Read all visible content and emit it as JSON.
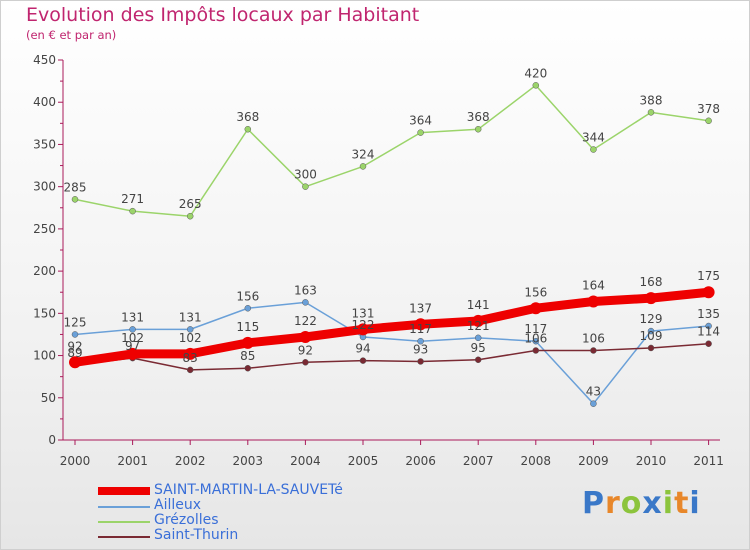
{
  "header": {
    "title": "Evolution des Impôts locaux par Habitant",
    "subtitle": "(en € et par an)"
  },
  "brand": {
    "text": "Proxiti",
    "colors": [
      "#3a78c8",
      "#e8872a",
      "#8cc43c",
      "#3a78c8",
      "#8cc43c",
      "#e8872a",
      "#3a78c8"
    ]
  },
  "chart_data": {
    "type": "line",
    "title": "Evolution des Impôts locaux par Habitant",
    "subtitle": "(en € et par an)",
    "xlabel": "",
    "ylabel": "",
    "x": [
      "2000",
      "2001",
      "2002",
      "2003",
      "2004",
      "2005",
      "2006",
      "2007",
      "2008",
      "2009",
      "2010",
      "2011"
    ],
    "ylim": [
      0,
      450
    ],
    "yticks": [
      0,
      50,
      100,
      150,
      200,
      250,
      300,
      350,
      400,
      450
    ],
    "grid": false,
    "legend_position": "bottom-left",
    "series": [
      {
        "name": "SAINT-MARTIN-LA-SAUVETé",
        "color": "#ee0000",
        "emphasis": true,
        "values": [
          92,
          102,
          102,
          115,
          122,
          131,
          137,
          141,
          156,
          164,
          168,
          175
        ]
      },
      {
        "name": "Ailleux",
        "color": "#6aa0d8",
        "emphasis": false,
        "values": [
          125,
          131,
          131,
          156,
          163,
          122,
          117,
          121,
          117,
          43,
          129,
          135
        ]
      },
      {
        "name": "Grézolles",
        "color": "#9bd46a",
        "emphasis": false,
        "values": [
          285,
          271,
          265,
          368,
          300,
          324,
          364,
          368,
          420,
          344,
          388,
          378
        ]
      },
      {
        "name": "Saint-Thurin",
        "color": "#7a2a33",
        "emphasis": false,
        "values": [
          89,
          97,
          83,
          85,
          92,
          94,
          93,
          95,
          106,
          106,
          109,
          114
        ]
      }
    ]
  }
}
